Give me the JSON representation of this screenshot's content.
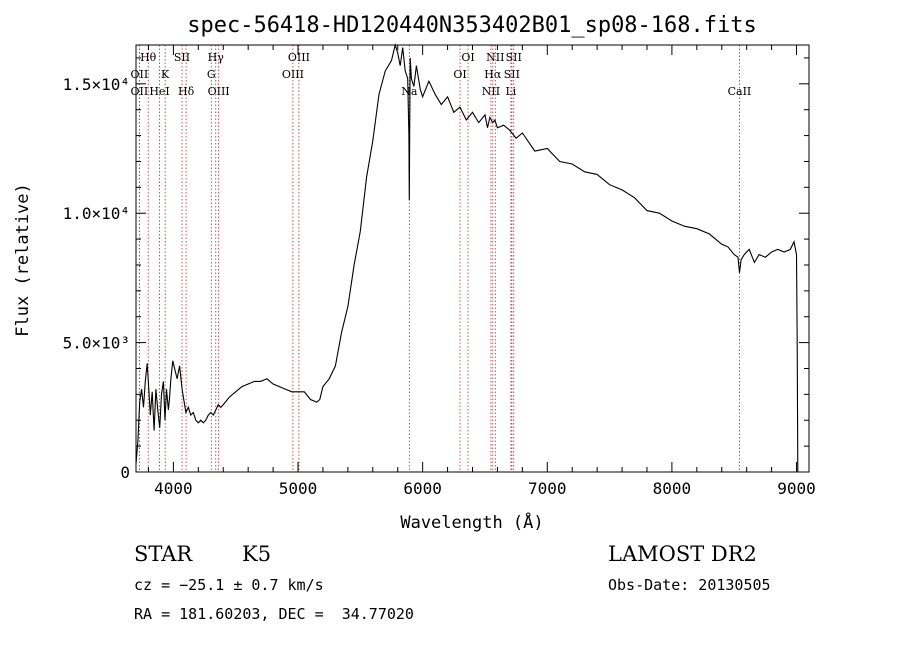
{
  "chart_data": {
    "type": "line",
    "title": "spec-56418-HD120440N353402B01_sp08-168.fits",
    "xlabel": "Wavelength (Å)",
    "ylabel": "Flux (relative)",
    "xlim": [
      3700,
      9100
    ],
    "ylim": [
      0,
      16500
    ],
    "x_ticks": [
      {
        "value": 4000,
        "label": "4000"
      },
      {
        "value": 5000,
        "label": "5000"
      },
      {
        "value": 6000,
        "label": "6000"
      },
      {
        "value": 7000,
        "label": "7000"
      },
      {
        "value": 8000,
        "label": "8000"
      },
      {
        "value": 9000,
        "label": "9000"
      }
    ],
    "y_ticks": [
      {
        "value": 0,
        "label": "0"
      },
      {
        "value": 5000,
        "label": "5.0×10³"
      },
      {
        "value": 10000,
        "label": "1.0×10⁴"
      },
      {
        "value": 15000,
        "label": "1.5×10⁴"
      }
    ],
    "grid": false,
    "series": [
      {
        "color": "#000000",
        "x": [
          3700,
          3715,
          3730,
          3745,
          3760,
          3775,
          3790,
          3800,
          3815,
          3830,
          3845,
          3860,
          3875,
          3890,
          3905,
          3920,
          3933,
          3945,
          3960,
          3968,
          3980,
          3995,
          4010,
          4030,
          4050,
          4070,
          4090,
          4100,
          4120,
          4140,
          4160,
          4180,
          4200,
          4220,
          4240,
          4260,
          4280,
          4300,
          4320,
          4340,
          4360,
          4380,
          4400,
          4450,
          4500,
          4550,
          4600,
          4650,
          4700,
          4750,
          4800,
          4850,
          4900,
          4950,
          5000,
          5050,
          5100,
          5150,
          5175,
          5200,
          5250,
          5300,
          5350,
          5400,
          5450,
          5500,
          5550,
          5600,
          5650,
          5700,
          5750,
          5780,
          5800,
          5820,
          5840,
          5860,
          5880,
          5890,
          5893,
          5896,
          5900,
          5910,
          5930,
          5950,
          5980,
          6000,
          6050,
          6100,
          6150,
          6200,
          6250,
          6300,
          6350,
          6400,
          6450,
          6500,
          6520,
          6540,
          6563,
          6580,
          6600,
          6650,
          6700,
          6750,
          6800,
          6900,
          7000,
          7100,
          7200,
          7300,
          7400,
          7500,
          7600,
          7700,
          7800,
          7900,
          8000,
          8100,
          8200,
          8300,
          8400,
          8450,
          8500,
          8530,
          8542,
          8555,
          8580,
          8620,
          8662,
          8700,
          8750,
          8800,
          8850,
          8900,
          8950,
          8980,
          9000,
          9005,
          9010
        ],
        "values": [
          300,
          1200,
          2700,
          3200,
          2500,
          3500,
          4200,
          3400,
          2200,
          3100,
          1600,
          3200,
          2400,
          1700,
          3000,
          3500,
          2000,
          3200,
          2400,
          2800,
          3600,
          4300,
          4000,
          3600,
          4100,
          3200,
          2600,
          2300,
          2500,
          2200,
          2300,
          2000,
          1900,
          2000,
          1900,
          2000,
          2200,
          2300,
          2200,
          2400,
          2600,
          2500,
          2600,
          2900,
          3100,
          3300,
          3400,
          3500,
          3500,
          3600,
          3400,
          3300,
          3200,
          3100,
          3100,
          3100,
          2800,
          2700,
          2800,
          3300,
          3600,
          4100,
          5400,
          6400,
          8000,
          9300,
          11400,
          12800,
          14600,
          15500,
          15900,
          16500,
          16200,
          15700,
          16400,
          15500,
          15200,
          13000,
          10500,
          13200,
          16000,
          15200,
          14900,
          15700,
          14800,
          14500,
          15100,
          14600,
          14200,
          14500,
          13900,
          14100,
          13600,
          13900,
          13500,
          13800,
          13300,
          13700,
          13500,
          13600,
          13300,
          13400,
          13200,
          12900,
          13100,
          12400,
          12500,
          12000,
          11900,
          11600,
          11500,
          11100,
          10900,
          10600,
          10100,
          10000,
          9700,
          9500,
          9400,
          9200,
          8800,
          8700,
          8400,
          8300,
          7700,
          8200,
          8400,
          8600,
          8100,
          8400,
          8300,
          8500,
          8600,
          8500,
          8600,
          8900,
          8400,
          5000,
          0
        ]
      }
    ],
    "line_markers": [
      {
        "x": 3798,
        "labels": [
          "Hθ"
        ],
        "row": 0
      },
      {
        "x": 3727,
        "labels": [
          "OII"
        ],
        "row": 1
      },
      {
        "x": 3727,
        "labels": [
          "OII"
        ],
        "row": 2
      },
      {
        "x": 3889,
        "labels": [
          "HeI"
        ],
        "row": 2
      },
      {
        "x": 3934,
        "labels": [
          "K"
        ],
        "row": 1
      },
      {
        "x": 4069,
        "labels": [
          "SII"
        ],
        "row": 0
      },
      {
        "x": 4102,
        "labels": [
          "Hδ"
        ],
        "row": 2
      },
      {
        "x": 4304,
        "labels": [
          "G"
        ],
        "row": 1
      },
      {
        "x": 4340,
        "labels": [
          "Hγ"
        ],
        "row": 0
      },
      {
        "x": 4363,
        "labels": [
          "OIII"
        ],
        "row": 2
      },
      {
        "x": 4959,
        "labels": [
          "OIII"
        ],
        "row": 1
      },
      {
        "x": 5007,
        "labels": [
          "OIII"
        ],
        "row": 0
      },
      {
        "x": 5893,
        "labels": [
          "Na"
        ],
        "row": 2
      },
      {
        "x": 6300,
        "labels": [
          "OI"
        ],
        "row": 1
      },
      {
        "x": 6364,
        "labels": [
          "OI"
        ],
        "row": 0
      },
      {
        "x": 6548,
        "labels": [
          "NII"
        ],
        "row": 2
      },
      {
        "x": 6563,
        "labels": [
          "Hα"
        ],
        "row": 1
      },
      {
        "x": 6583,
        "labels": [
          "NII"
        ],
        "row": 0
      },
      {
        "x": 6708,
        "labels": [
          "Li"
        ],
        "row": 2
      },
      {
        "x": 6716,
        "labels": [
          "SII"
        ],
        "row": 1
      },
      {
        "x": 6731,
        "labels": [
          "SII"
        ],
        "row": 0
      },
      {
        "x": 8542,
        "labels": [
          "CaII"
        ],
        "row": 2
      }
    ],
    "marker_color": "#b03030"
  },
  "info": {
    "class_label": "STAR",
    "subclass_label": "K5",
    "redshift_text": "cz = −25.1 ± 0.7 km/s",
    "coords_text": "RA = 181.60203, DEC =  34.77020",
    "survey_label": "LAMOST DR2",
    "obs_date_text": "Obs-Date: 20130505"
  }
}
